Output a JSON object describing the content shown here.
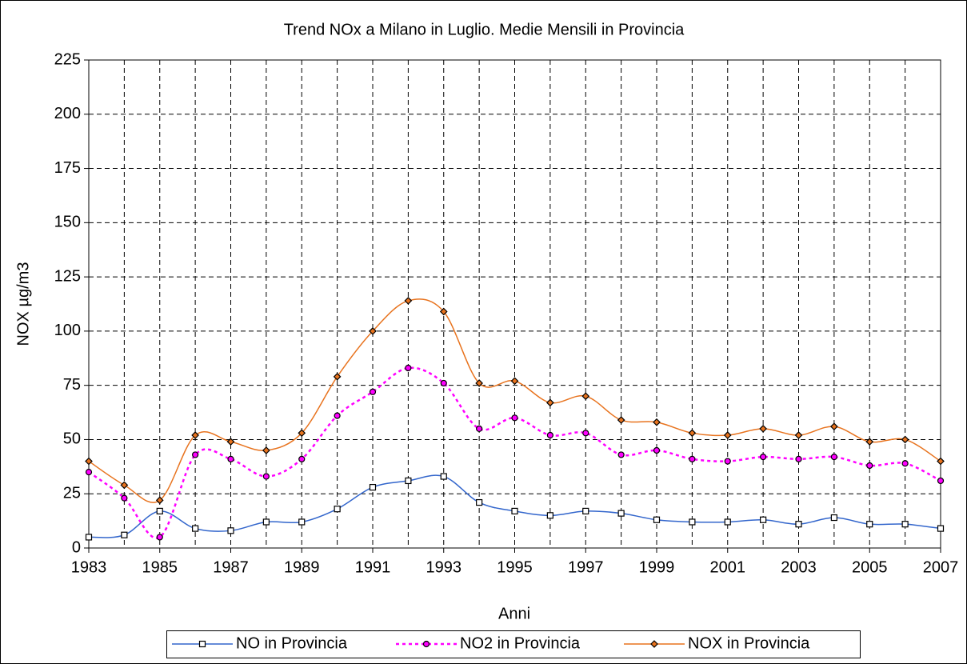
{
  "chart_data": {
    "type": "line",
    "title": "Trend NOx a Milano in Luglio. Medie Mensili in Provincia",
    "x_label": "Anni",
    "y_label": "NOX µg/m3",
    "x": [
      1983,
      1984,
      1985,
      1986,
      1987,
      1988,
      1989,
      1990,
      1991,
      1992,
      1993,
      1994,
      1995,
      1996,
      1997,
      1998,
      1999,
      2000,
      2001,
      2002,
      2003,
      2004,
      2005,
      2006,
      2007
    ],
    "series": [
      {
        "name": "NO in Provincia",
        "color": "#3366cc",
        "marker": "square",
        "dash": "solid",
        "values": [
          5,
          6,
          17,
          9,
          8,
          12,
          12,
          18,
          28,
          31,
          33,
          21,
          17,
          15,
          17,
          16,
          13,
          12,
          12,
          13,
          11,
          14,
          11,
          11,
          9
        ]
      },
      {
        "name": "NO2 in Provincia",
        "color": "#ff00ff",
        "marker": "circle",
        "dash": "dotted",
        "values": [
          35,
          23,
          5,
          43,
          41,
          33,
          41,
          61,
          72,
          83,
          76,
          55,
          60,
          52,
          53,
          43,
          45,
          41,
          40,
          42,
          41,
          42,
          38,
          39,
          31
        ]
      },
      {
        "name": "NOX in Provincia",
        "color": "#e8731e",
        "marker": "diamond",
        "dash": "solid",
        "values": [
          40,
          29,
          22,
          52,
          49,
          45,
          53,
          79,
          100,
          114,
          109,
          76,
          77,
          67,
          70,
          59,
          58,
          53,
          52,
          55,
          52,
          56,
          49,
          50,
          40
        ]
      }
    ],
    "xlim": [
      1983,
      2007
    ],
    "xticks": [
      1983,
      1985,
      1987,
      1989,
      1991,
      1993,
      1995,
      1997,
      1999,
      2001,
      2003,
      2005,
      2007
    ],
    "ylim": [
      0,
      225
    ],
    "yticks": [
      0,
      25,
      50,
      75,
      100,
      125,
      150,
      175,
      200,
      225
    ],
    "grid": true,
    "legend": "bottom"
  }
}
